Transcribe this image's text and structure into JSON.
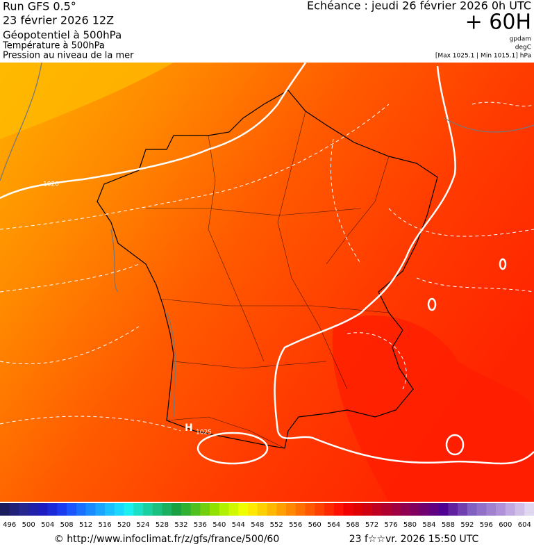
{
  "header": {
    "run": "Run GFS 0.5°",
    "run_date": "23 février 2026 12Z",
    "fields": [
      "Géopotentiel à 500hPa",
      "Température à 500hPa",
      "Pression au niveau de la mer"
    ],
    "valid": "Echéance : jeudi 26 février 2026 0h UTC",
    "lead": "+ 60H",
    "units": [
      "gpdam",
      "degC"
    ],
    "pressure_range": "[Max 1025.1 | Min 1015.1] hPa"
  },
  "map": {
    "contour_labels": [
      "1020",
      "1025"
    ],
    "high_label": "H"
  },
  "colorbar": {
    "labels": [
      496,
      500,
      504,
      508,
      512,
      516,
      520,
      524,
      528,
      532,
      536,
      540,
      544,
      548,
      552,
      556,
      560,
      564,
      568,
      572,
      576,
      580,
      584,
      588,
      592,
      596,
      600,
      604
    ],
    "colors": [
      "#1a1a5e",
      "#202078",
      "#26268f",
      "#2020a8",
      "#1c1cc0",
      "#1a2ad8",
      "#1a3cf0",
      "#1a55ff",
      "#1a70ff",
      "#1a8aff",
      "#1aa5ff",
      "#1ac0ff",
      "#1ad8ff",
      "#1af0f0",
      "#1ae0c8",
      "#1ad0a0",
      "#1ac080",
      "#1ab060",
      "#1aa040",
      "#30b030",
      "#50c020",
      "#70d010",
      "#90e000",
      "#b0f000",
      "#d0f800",
      "#f0ff00",
      "#ffe800",
      "#ffd000",
      "#ffb800",
      "#ffa000",
      "#ff8800",
      "#ff7000",
      "#ff5800",
      "#ff4000",
      "#ff2800",
      "#ff1000",
      "#f00000",
      "#e00000",
      "#d00010",
      "#c00020",
      "#b00030",
      "#a00040",
      "#900050",
      "#800060",
      "#700070",
      "#600080",
      "#500090",
      "#6020a0",
      "#7040b0",
      "#8060c0",
      "#9070c8",
      "#a080d0",
      "#b090d8",
      "#c0a8e0",
      "#d0c0e8",
      "#e0d8f0"
    ]
  },
  "footer": {
    "source": "© http://www.infoclimat.fr/z/gfs/france/500/60",
    "timestamp": "23 f☆☆vr. 2026 15:50 UTC"
  }
}
